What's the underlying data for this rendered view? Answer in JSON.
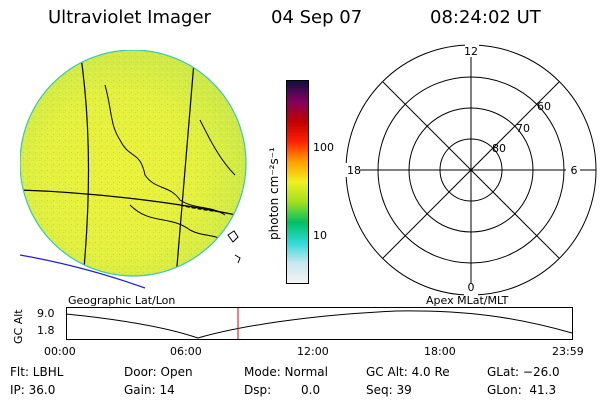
{
  "header": {
    "instrument": "Ultraviolet Imager",
    "date": "04 Sep 07",
    "time": "08:24:02 UT"
  },
  "geo_map": {
    "label": "Geographic Lat/Lon"
  },
  "colorbar": {
    "unit_label": "photon cm⁻²s⁻¹",
    "ticks": [
      "100",
      "10"
    ],
    "scale": "log",
    "colors": [
      "#f4f4f4",
      "#c8e8f0",
      "#30d8d8",
      "#00c060",
      "#a0e020",
      "#f0f020",
      "#ffa000",
      "#ff2000",
      "#c00000",
      "#800060",
      "#101040"
    ]
  },
  "polar_plot": {
    "label": "Apex MLat/MLT",
    "mlt_labels": {
      "top": "12",
      "right": "6",
      "bottom": "0",
      "left": "18"
    },
    "mlat_labels": [
      "60",
      "70",
      "80"
    ]
  },
  "altitude_plot": {
    "y_axis_label": "GC Alt",
    "y_ticks": [
      "9.0",
      "1.8"
    ],
    "x_ticks": [
      "00:00",
      "06:00",
      "12:00",
      "18:00",
      "23:59"
    ],
    "cursor_color": "#e00000",
    "cursor_time": "08:24"
  },
  "info": {
    "flt": "Flt: LBHL",
    "ip": "IP: 36.0",
    "door": "Door: Open",
    "gain": "Gain: 14",
    "mode": "Mode: Normal",
    "dsp_label": "Dsp:",
    "dsp_value": "0.0",
    "gc_alt": "GC Alt: 4.0 Re",
    "seq": "Seq: 39",
    "glat": "GLat: −26.0",
    "glon": "GLon:  41.3"
  }
}
